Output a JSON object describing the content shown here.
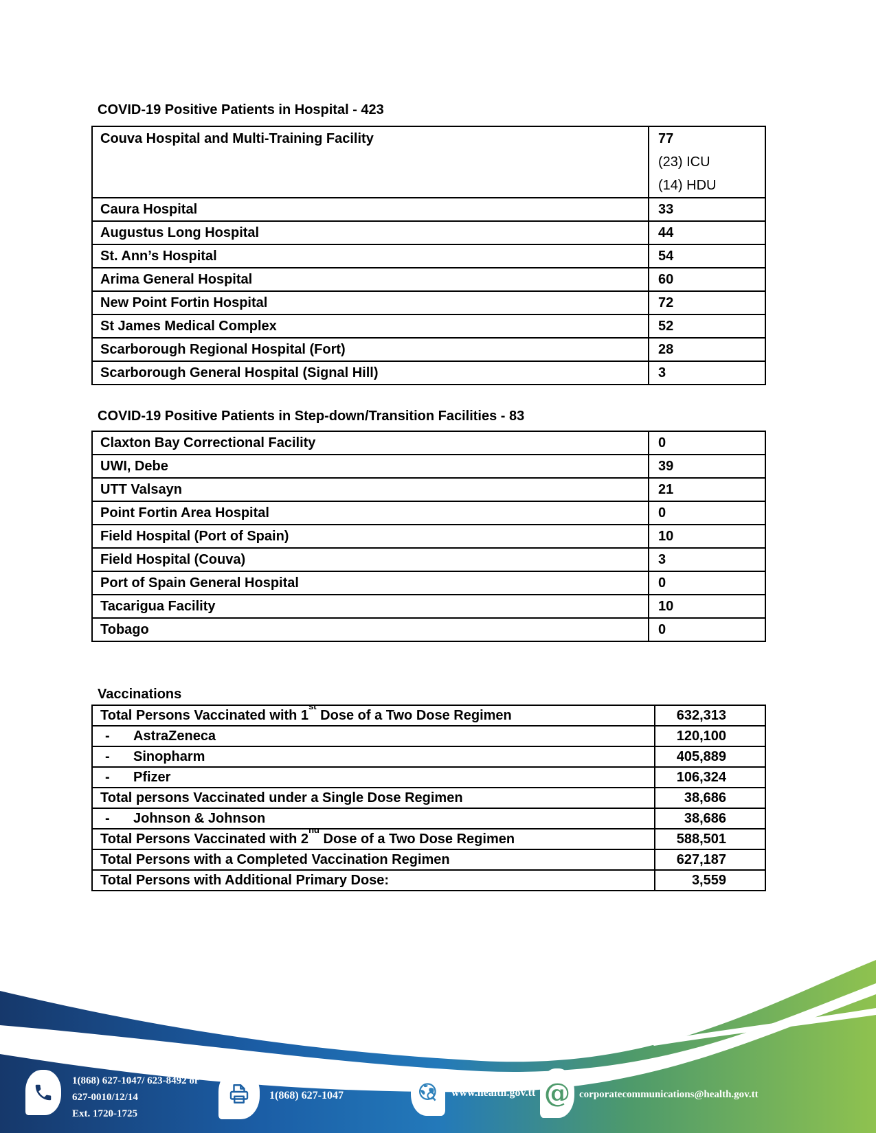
{
  "sections": {
    "hospital": {
      "heading": "COVID-19 Positive Patients in Hospital - 423",
      "rows": [
        {
          "label": "Couva Hospital and Multi-Training Facility",
          "value": "77",
          "extra": [
            "(23) ICU",
            "(14) HDU"
          ]
        },
        {
          "label": "Caura Hospital",
          "value": "33"
        },
        {
          "label": "Augustus Long Hospital",
          "value": "44"
        },
        {
          "label": "St. Ann’s Hospital",
          "value": "54"
        },
        {
          "label": "Arima General Hospital",
          "value": "60"
        },
        {
          "label": "New Point Fortin Hospital",
          "value": "72"
        },
        {
          "label": "St James Medical Complex",
          "value": "52"
        },
        {
          "label": "Scarborough Regional Hospital (Fort)",
          "value": "28"
        },
        {
          "label": "Scarborough General Hospital (Signal Hill)",
          "value": "3"
        }
      ]
    },
    "stepdown": {
      "heading": "COVID-19 Positive Patients in Step-down/Transition Facilities - 83",
      "rows": [
        {
          "label": "Claxton Bay Correctional Facility",
          "value": "0"
        },
        {
          "label": "UWI, Debe",
          "value": "39"
        },
        {
          "label": "UTT Valsayn",
          "value": "21"
        },
        {
          "label": "Point Fortin Area Hospital",
          "value": "0"
        },
        {
          "label": "Field Hospital (Port of Spain)",
          "value": "10"
        },
        {
          "label": "Field Hospital (Couva)",
          "value": "3"
        },
        {
          "label": "Port of Spain General Hospital",
          "value": "0"
        },
        {
          "label": "Tacarigua Facility",
          "value": "10"
        },
        {
          "label": "Tobago",
          "value": "0"
        }
      ]
    },
    "vaccinations": {
      "heading": "Vaccinations",
      "rows": [
        {
          "label": "Total Persons Vaccinated with 1",
          "sup": "st",
          "label2": " Dose of a Two Dose Regimen",
          "value": "632,313"
        },
        {
          "bullet": "-",
          "label": "AstraZeneca",
          "value": "120,100"
        },
        {
          "bullet": "-",
          "label": "Sinopharm",
          "value": "405,889"
        },
        {
          "bullet": "-",
          "label": "Pfizer",
          "value": "106,324"
        },
        {
          "label": "Total persons Vaccinated under a Single Dose Regimen",
          "value": "38,686"
        },
        {
          "bullet": "-",
          "label": "Johnson & Johnson",
          "value": "38,686"
        },
        {
          "label": "Total Persons Vaccinated with 2",
          "sup": "nd",
          "label2": " Dose of a Two Dose Regimen",
          "value": "588,501"
        },
        {
          "label": "Total Persons with a Completed Vaccination Regimen",
          "value": "627,187"
        },
        {
          "label": "Total Persons with Additional Primary Dose:",
          "value": "3,559"
        }
      ]
    }
  },
  "footer": {
    "contacts": [
      {
        "icon": "phone-icon",
        "lines": [
          "1(868) 627-1047/ 623-8492 or",
          "627-0010/12/14",
          "Ext. 1720-1725"
        ]
      },
      {
        "icon": "fax-icon",
        "lines": [
          "1(868) 627-1047"
        ]
      },
      {
        "icon": "globe-icon",
        "lines": [
          "www.health.gov.tt"
        ]
      },
      {
        "icon": "email-icon",
        "lines": [
          "corporatecommunications@health.gov.tt"
        ]
      }
    ],
    "colors": {
      "navy": "#16386B",
      "blue": "#1B5EA6",
      "light_blue": "#2379BA",
      "teal": "#4E9A6B",
      "green": "#8FC24F",
      "white": "#FFFFFF"
    }
  }
}
